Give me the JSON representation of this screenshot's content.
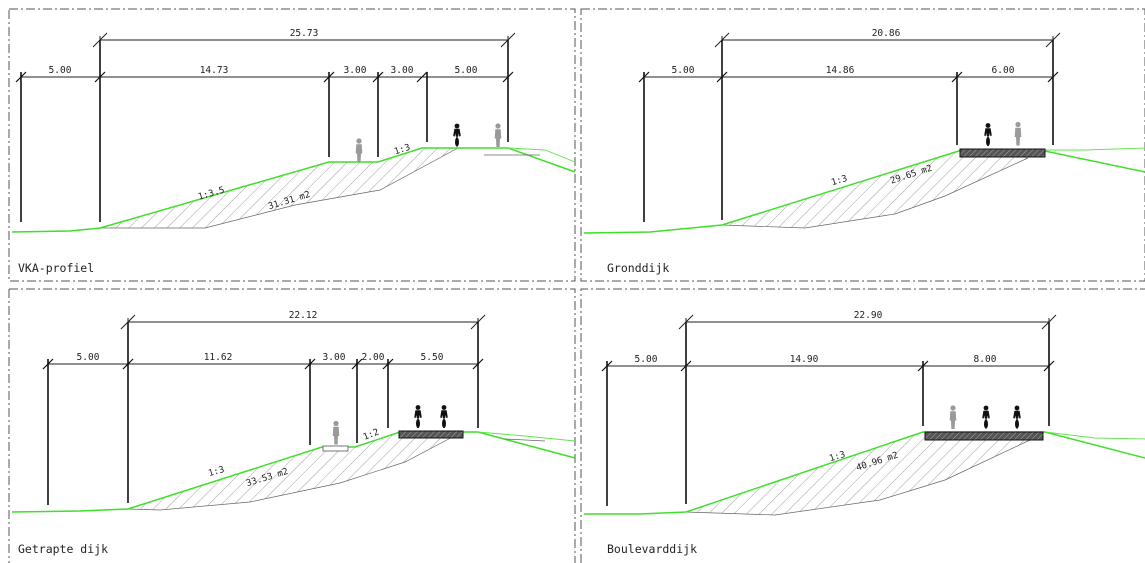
{
  "panels": [
    {
      "title": "VKA-profiel",
      "overall_dim": "25.73",
      "dims": [
        "5.00",
        "14.73",
        "3.00",
        "3.00",
        "5.00"
      ],
      "slopes": [
        "1:3.5",
        "1:3"
      ],
      "area": "31.31 m2"
    },
    {
      "title": "Gronddijk",
      "overall_dim": "20.86",
      "dims": [
        "5.00",
        "14.86",
        "6.00"
      ],
      "slopes": [
        "1:3"
      ],
      "area": "29.65 m2"
    },
    {
      "title": "Getrapte dijk",
      "overall_dim": "22.12",
      "dims": [
        "5.00",
        "11.62",
        "3.00",
        "2.00",
        "5.50"
      ],
      "slopes": [
        "1:3",
        "1:2"
      ],
      "area": "33.53 m2"
    },
    {
      "title": "Boulevarddijk",
      "overall_dim": "22.90",
      "dims": [
        "5.00",
        "14.90",
        "8.00"
      ],
      "slopes": [
        "1:3"
      ],
      "area": "40.96 m2"
    }
  ],
  "colors": {
    "ground_line": "#3fdf2a",
    "frame": "#555555",
    "person_pedestrian": "#9a9a9a",
    "person_cyclist": "#111111"
  }
}
